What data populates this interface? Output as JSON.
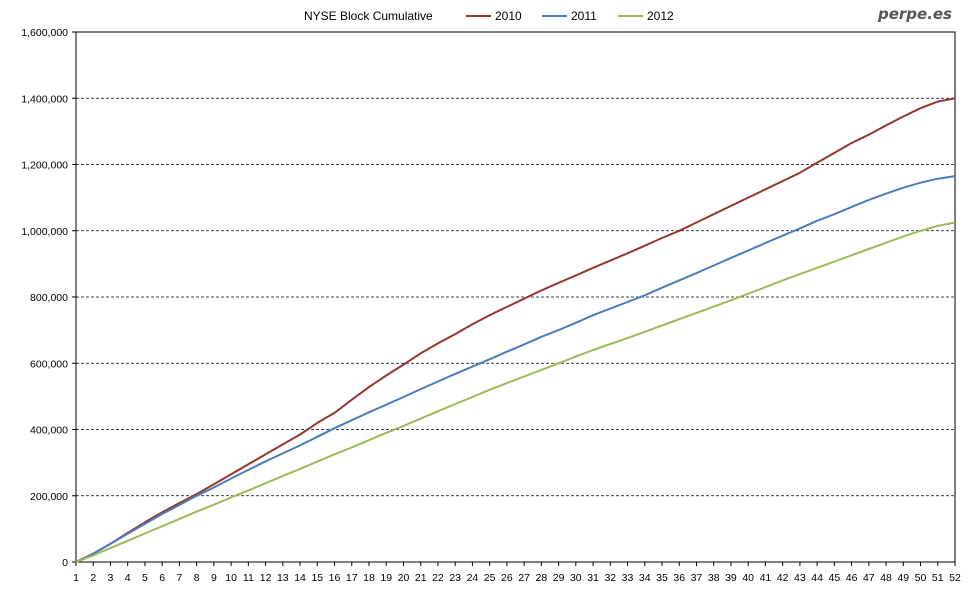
{
  "watermark": "perpe.es",
  "chart_data": {
    "type": "line",
    "title": "NYSE Block Cumulative",
    "xlabel": "",
    "ylabel": "",
    "ylim": [
      0,
      1600000
    ],
    "yticks": [
      "0",
      "200,000",
      "400,000",
      "600,000",
      "800,000",
      "1,000,000",
      "1,200,000",
      "1,400,000",
      "1,600,000"
    ],
    "x": [
      1,
      2,
      3,
      4,
      5,
      6,
      7,
      8,
      9,
      10,
      11,
      12,
      13,
      14,
      15,
      16,
      17,
      18,
      19,
      20,
      21,
      22,
      23,
      24,
      25,
      26,
      27,
      28,
      29,
      30,
      31,
      32,
      33,
      34,
      35,
      36,
      37,
      38,
      39,
      40,
      41,
      42,
      43,
      44,
      45,
      46,
      47,
      48,
      49,
      50,
      51,
      52
    ],
    "legend_position": "top",
    "grid": "horizontal dashed",
    "series": [
      {
        "name": "2010",
        "color": "#953735",
        "values": [
          0,
          25000,
          55000,
          88000,
          120000,
          150000,
          178000,
          205000,
          235000,
          265000,
          295000,
          325000,
          355000,
          385000,
          420000,
          450000,
          490000,
          528000,
          563000,
          596000,
          630000,
          660000,
          688000,
          718000,
          745000,
          770000,
          795000,
          820000,
          843000,
          865000,
          888000,
          910000,
          932000,
          955000,
          978000,
          1000000,
          1025000,
          1050000,
          1075000,
          1100000,
          1125000,
          1150000,
          1175000,
          1205000,
          1235000,
          1265000,
          1290000,
          1318000,
          1345000,
          1370000,
          1390000,
          1400000
        ]
      },
      {
        "name": "2011",
        "color": "#4a7ebb",
        "values": [
          0,
          25000,
          55000,
          85000,
          115000,
          145000,
          172000,
          200000,
          225000,
          252000,
          278000,
          304000,
          328000,
          352000,
          378000,
          404000,
          428000,
          452000,
          475000,
          498000,
          522000,
          545000,
          568000,
          590000,
          612000,
          635000,
          657000,
          680000,
          700000,
          722000,
          745000,
          765000,
          785000,
          805000,
          828000,
          850000,
          872000,
          895000,
          918000,
          940000,
          963000,
          985000,
          1007000,
          1030000,
          1050000,
          1072000,
          1093000,
          1112000,
          1130000,
          1145000,
          1157000,
          1165000
        ]
      },
      {
        "name": "2012",
        "color": "#9bbb59",
        "values": [
          0,
          20000,
          42000,
          64000,
          86000,
          108000,
          130000,
          152000,
          173000,
          195000,
          216000,
          238000,
          260000,
          281000,
          303000,
          325000,
          346000,
          368000,
          390000,
          411000,
          433000,
          455000,
          477000,
          498000,
          520000,
          540000,
          560000,
          580000,
          600000,
          620000,
          640000,
          658000,
          676000,
          695000,
          714000,
          733000,
          752000,
          771000,
          790000,
          810000,
          830000,
          850000,
          869000,
          888000,
          907000,
          926000,
          945000,
          964000,
          983000,
          1000000,
          1015000,
          1025000
        ]
      }
    ]
  }
}
